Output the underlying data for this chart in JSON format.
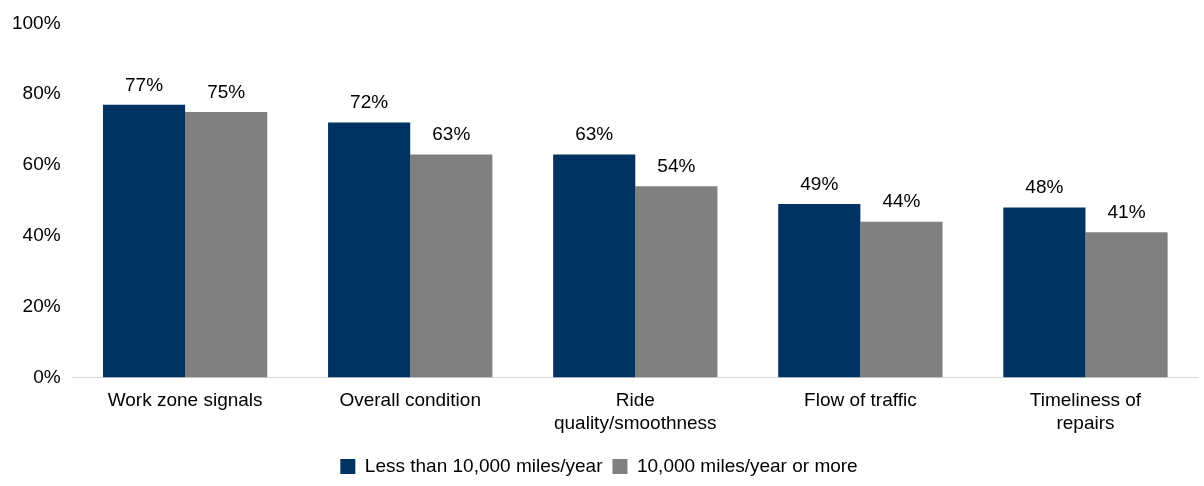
{
  "chart_data": {
    "type": "bar",
    "categories": [
      "Work zone signals",
      "Overall condition",
      "Ride quality/smoothness",
      "Flow of traffic",
      "Timeliness of repairs"
    ],
    "series": [
      {
        "name": "Less than 10,000 miles/year",
        "color": "#003262",
        "values": [
          77,
          72,
          63,
          49,
          48
        ],
        "value_labels": [
          "77%",
          "72%",
          "63%",
          "49%",
          "48%"
        ]
      },
      {
        "name": "10,000 miles/year or more",
        "color": "#808080",
        "values": [
          75,
          63,
          54,
          44,
          41
        ],
        "value_labels": [
          "75%",
          "63%",
          "54%",
          "44%",
          "41%"
        ]
      }
    ],
    "ylim": [
      0,
      100
    ],
    "yticks": [
      {
        "value": 0,
        "label": "0%"
      },
      {
        "value": 20,
        "label": "20%"
      },
      {
        "value": 40,
        "label": "40%"
      },
      {
        "value": 60,
        "label": "60%"
      },
      {
        "value": 80,
        "label": "80%"
      },
      {
        "value": 100,
        "label": "100%"
      }
    ],
    "grid": false,
    "legend": "bottom"
  }
}
